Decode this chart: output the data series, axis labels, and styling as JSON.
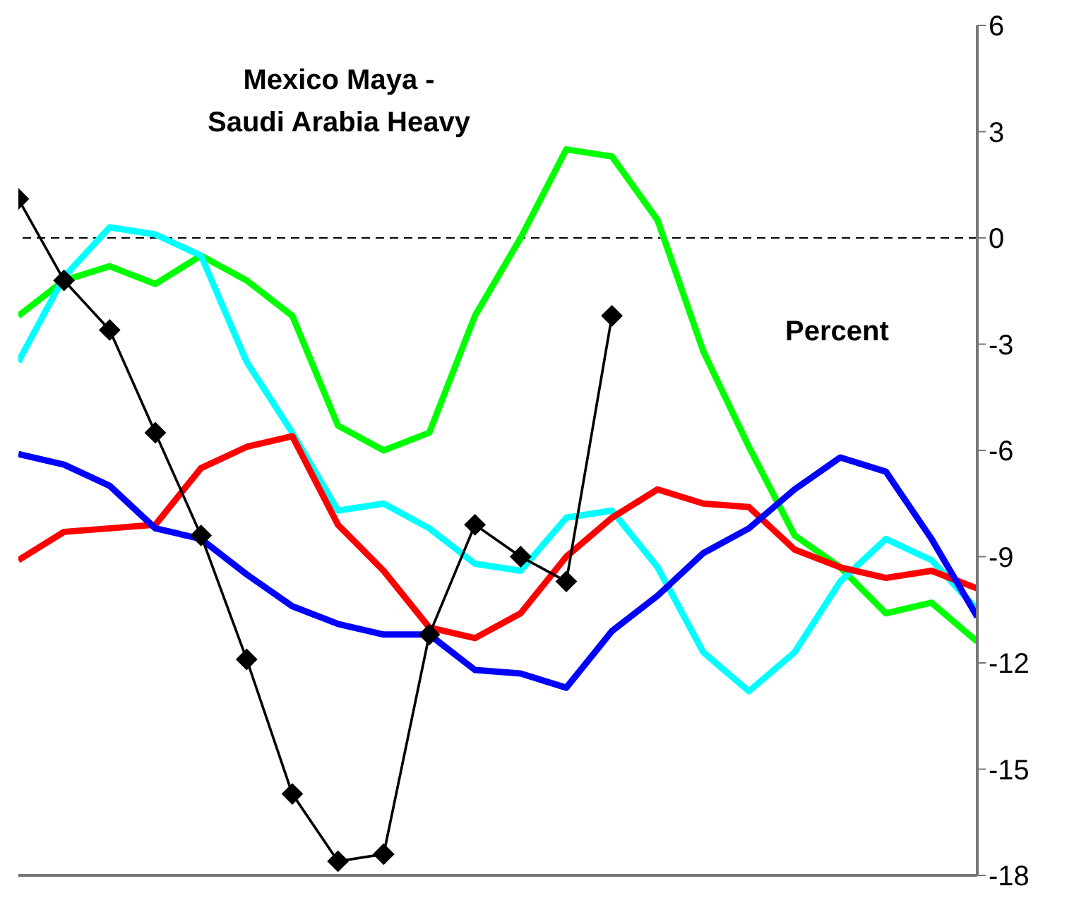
{
  "chart_data": {
    "type": "line",
    "title": "Mexico Maya -\nSaudi Arabia Heavy",
    "ylabel": "Percent",
    "categories": [
      null,
      null,
      null,
      null,
      null,
      null,
      null,
      null,
      null,
      null,
      null,
      null,
      null,
      null,
      null,
      null,
      null,
      null,
      null,
      null,
      null,
      null
    ],
    "ylim": [
      -18,
      6
    ],
    "yticks": [
      6,
      3,
      0,
      -3,
      -6,
      -9,
      -12,
      -15,
      -18
    ],
    "grid": false,
    "legend": false,
    "ref_lines": [
      {
        "axis": "y",
        "value": 0,
        "color": "#000000",
        "line_style": "dashed"
      }
    ],
    "series": [
      {
        "color": "#00ff00",
        "marker": "none",
        "values": [
          -2.2,
          -1.2,
          -0.8,
          -1.3,
          -0.5,
          -1.2,
          -2.2,
          -5.3,
          -6.0,
          -5.5,
          -2.2,
          0.0,
          2.5,
          2.3,
          0.5,
          -3.2,
          -5.9,
          -8.4,
          -9.3,
          -10.6,
          -10.3,
          -11.4
        ]
      },
      {
        "color": "#00ffff",
        "marker": "none",
        "values": [
          -3.5,
          -1.1,
          0.3,
          0.1,
          -0.5,
          -3.5,
          -5.5,
          -7.7,
          -7.5,
          -8.2,
          -9.2,
          -9.4,
          -7.9,
          -7.7,
          -9.3,
          -11.7,
          -12.8,
          -11.7,
          -9.7,
          -8.5,
          -9.1,
          -10.5
        ]
      },
      {
        "color": "#ff0000",
        "marker": "none",
        "values": [
          -9.1,
          -8.3,
          -8.2,
          -8.1,
          -6.5,
          -5.9,
          -5.6,
          -8.1,
          -9.4,
          -11.0,
          -11.3,
          -10.6,
          -9.0,
          -7.9,
          -7.1,
          -7.5,
          -7.6,
          -8.8,
          -9.3,
          -9.6,
          -9.4,
          -9.9
        ]
      },
      {
        "color": "#0000ff",
        "marker": "none",
        "values": [
          -6.1,
          -6.4,
          -7.0,
          -8.2,
          -8.5,
          -9.5,
          -10.4,
          -10.9,
          -11.2,
          -11.2,
          -12.2,
          -12.3,
          -12.7,
          -11.1,
          -10.1,
          -8.9,
          -8.2,
          -7.1,
          -6.2,
          -6.6,
          -8.5,
          -10.7
        ]
      },
      {
        "color": "#000000",
        "marker": "diamond",
        "values": [
          1.1,
          -1.2,
          -2.6,
          -5.5,
          -8.4,
          -11.9,
          -15.7,
          -17.6,
          -17.4,
          -11.2,
          -8.1,
          -9.0,
          -9.7,
          -2.2,
          null,
          null,
          null,
          null,
          null,
          null,
          null,
          null
        ]
      }
    ]
  }
}
